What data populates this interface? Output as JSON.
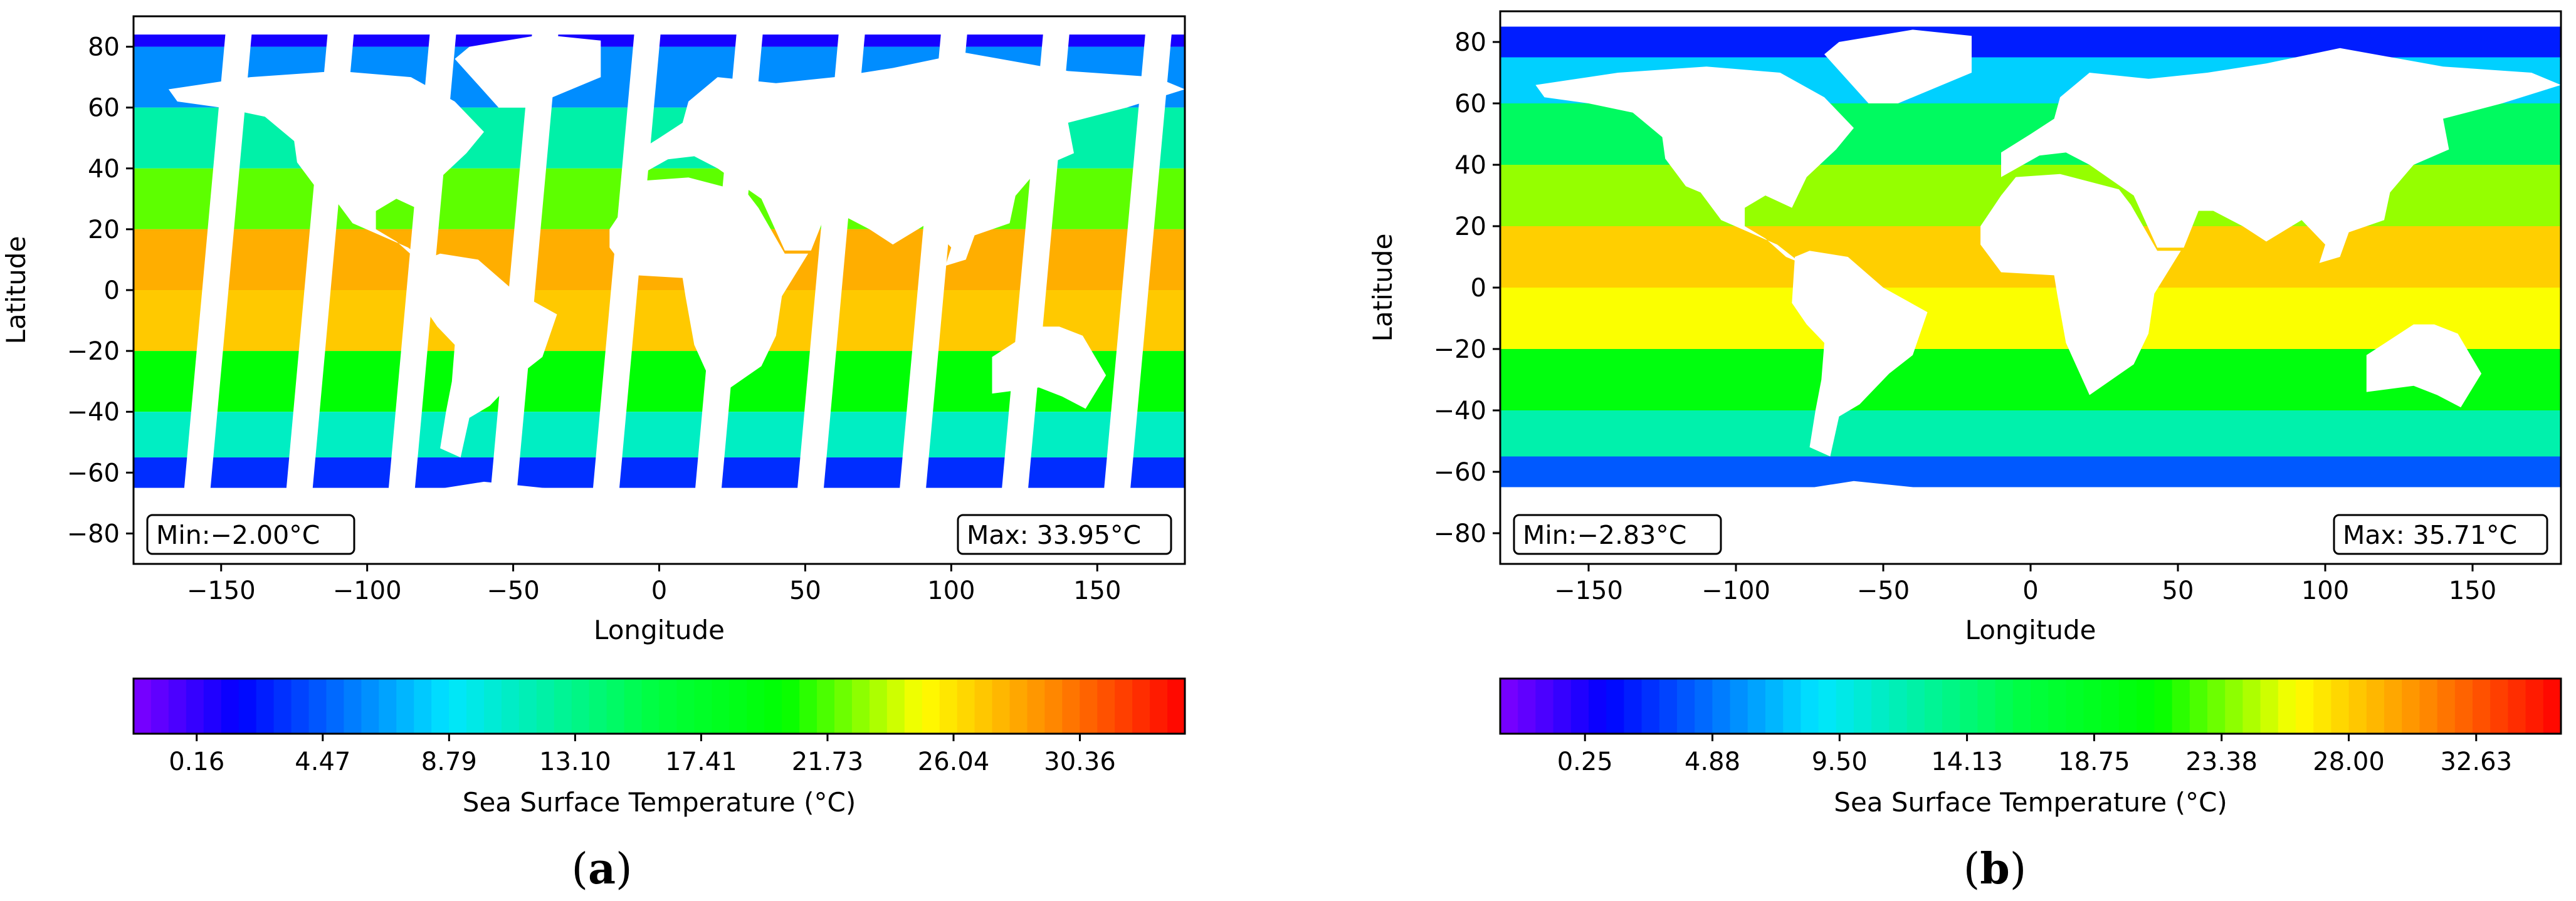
{
  "chart_data": [
    {
      "type": "heatmap",
      "panel_tag": "a",
      "xlabel": "Longitude",
      "ylabel": "Latitude",
      "xlim": [
        -180,
        180
      ],
      "ylim": [
        -90,
        90
      ],
      "x_ticks": [
        -150,
        -100,
        -50,
        0,
        50,
        100,
        150
      ],
      "x_tick_labels": [
        "−150",
        "−100",
        "−50",
        "0",
        "50",
        "100",
        "150"
      ],
      "y_ticks": [
        -80,
        -60,
        -40,
        -20,
        0,
        20,
        40,
        60,
        80
      ],
      "y_tick_labels": [
        "−80",
        "−60",
        "−40",
        "−20",
        "0",
        "20",
        "40",
        "60",
        "80"
      ],
      "min_label": "Min:−2.00°C",
      "max_label": "Max: 33.95°C",
      "min_value": -2.0,
      "max_value": 33.95,
      "colorbar": {
        "label": "Sea Surface Temperature (°C)",
        "range": [
          -2.0,
          33.95
        ],
        "ticks": [
          0.16,
          4.47,
          8.79,
          13.1,
          17.41,
          21.73,
          26.04,
          30.36
        ],
        "tick_labels": [
          "0.16",
          "4.47",
          "8.79",
          "13.10",
          "17.41",
          "21.73",
          "26.04",
          "30.36"
        ]
      },
      "bands": [
        {
          "lat": [
            80,
            90
          ],
          "temp": 1
        },
        {
          "lat": [
            60,
            80
          ],
          "temp": 6
        },
        {
          "lat": [
            40,
            60
          ],
          "temp": 12
        },
        {
          "lat": [
            20,
            40
          ],
          "temp": 22
        },
        {
          "lat": [
            0,
            20
          ],
          "temp": 28
        },
        {
          "lat": [
            -20,
            0
          ],
          "temp": 27
        },
        {
          "lat": [
            -40,
            -20
          ],
          "temp": 20
        },
        {
          "lat": [
            -55,
            -40
          ],
          "temp": 11
        },
        {
          "lat": [
            -65,
            -55
          ],
          "temp": 3
        }
      ]
    },
    {
      "type": "heatmap",
      "panel_tag": "b",
      "xlabel": "Longitude",
      "ylabel": "Latitude",
      "xlim": [
        -180,
        180
      ],
      "ylim": [
        -90,
        90
      ],
      "x_ticks": [
        -150,
        -100,
        -50,
        0,
        50,
        100,
        150
      ],
      "x_tick_labels": [
        "−150",
        "−100",
        "−50",
        "0",
        "50",
        "100",
        "150"
      ],
      "y_ticks": [
        -80,
        -60,
        -40,
        -20,
        0,
        20,
        40,
        60,
        80
      ],
      "y_tick_labels": [
        "−80",
        "−60",
        "−40",
        "−20",
        "0",
        "20",
        "40",
        "60",
        "80"
      ],
      "min_label": "Min:−2.83°C",
      "max_label": "Max: 35.71°C",
      "min_value": -2.83,
      "max_value": 35.71,
      "colorbar": {
        "label": "Sea Surface Temperature (°C)",
        "range": [
          -2.83,
          35.71
        ],
        "ticks": [
          0.25,
          4.88,
          9.5,
          14.13,
          18.75,
          23.38,
          28.0,
          32.63
        ],
        "tick_labels": [
          "0.25",
          "4.88",
          "9.50",
          "14.13",
          "18.75",
          "23.38",
          "28.00",
          "32.63"
        ]
      },
      "bands": [
        {
          "lat": [
            75,
            85
          ],
          "temp": 2
        },
        {
          "lat": [
            60,
            75
          ],
          "temp": 8
        },
        {
          "lat": [
            40,
            60
          ],
          "temp": 15
        },
        {
          "lat": [
            20,
            40
          ],
          "temp": 24
        },
        {
          "lat": [
            0,
            20
          ],
          "temp": 28
        },
        {
          "lat": [
            -20,
            0
          ],
          "temp": 26
        },
        {
          "lat": [
            -40,
            -20
          ],
          "temp": 20
        },
        {
          "lat": [
            -55,
            -40
          ],
          "temp": 12
        },
        {
          "lat": [
            -65,
            -55
          ],
          "temp": 4
        }
      ]
    }
  ]
}
